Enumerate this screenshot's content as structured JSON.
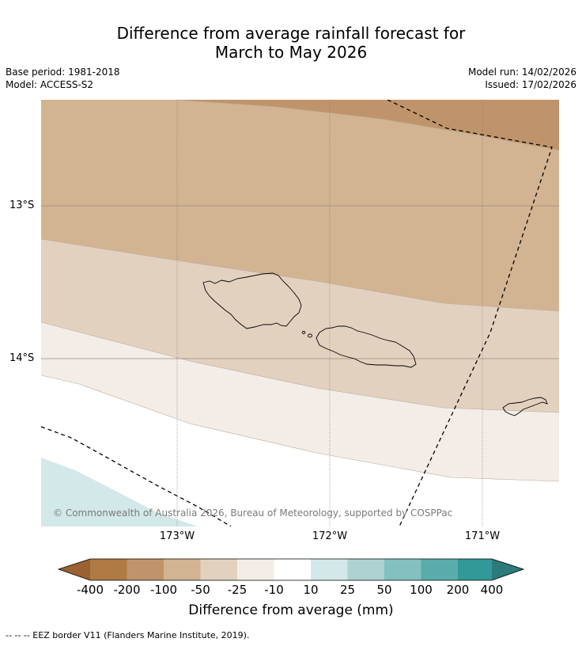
{
  "title": {
    "line1": "Difference from average rainfall forecast for",
    "line2": "March to May 2026"
  },
  "meta": {
    "base_period": "Base period: 1981-2018",
    "model": "Model: ACCESS-S2",
    "model_run": "Model run: 14/02/2026",
    "issued": "Issued: 17/02/2026"
  },
  "map": {
    "latitudes": [
      "13°S",
      "14°S"
    ],
    "longitudes": [
      "173°W",
      "172°W",
      "171°W"
    ],
    "copyright": "© Commonwealth of Australia 2026, Bureau of Meteorology, supported by COSPPac",
    "colors": {
      "c_-200_-100": "#c0946a",
      "c_-100_-50": "#d2b492",
      "c_-50_-25": "#e3d1c0",
      "c_-25_-10": "#f4ede7",
      "c_-10_10": "#ffffff",
      "c_10_25": "#d3e8e8"
    }
  },
  "legend": {
    "title": "Difference from average (mm)",
    "ticks": [
      "-400",
      "-200",
      "-100",
      "-50",
      "-25",
      "-10",
      "10",
      "25",
      "50",
      "100",
      "200",
      "400"
    ],
    "colors": [
      "#9b6130",
      "#b07a45",
      "#c0946a",
      "#d2b492",
      "#e3d1c0",
      "#f4ede7",
      "#ffffff",
      "#d3e8e8",
      "#aed2d2",
      "#84c0c0",
      "#5aacac",
      "#339898",
      "#2b7b7b"
    ]
  },
  "footnote": "--  --  -- EEZ border V11 (Flanders Marine Institute, 2019)."
}
